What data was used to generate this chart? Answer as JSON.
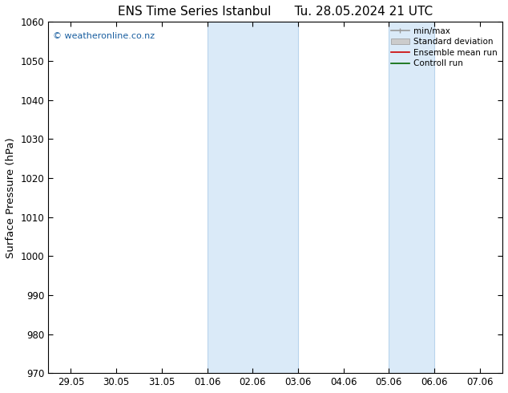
{
  "title": "ENS Time Series Istanbul      Tu. 28.05.2024 21 UTC",
  "ylabel": "Surface Pressure (hPa)",
  "ylim": [
    970,
    1060
  ],
  "yticks": [
    970,
    980,
    990,
    1000,
    1010,
    1020,
    1030,
    1040,
    1050,
    1060
  ],
  "xtick_labels": [
    "29.05",
    "30.05",
    "31.05",
    "01.06",
    "02.06",
    "03.06",
    "04.06",
    "05.06",
    "06.06",
    "07.06"
  ],
  "xtick_positions": [
    0,
    1,
    2,
    3,
    4,
    5,
    6,
    7,
    8,
    9
  ],
  "xlim": [
    -0.5,
    9.5
  ],
  "shade_bands": [
    {
      "xstart": 3,
      "xend": 5
    },
    {
      "xstart": 7,
      "xend": 8
    }
  ],
  "shade_color": "#daeaf8",
  "shade_edge_color": "#b8d4ec",
  "watermark_text": "© weatheronline.co.nz",
  "watermark_color": "#1a5fa0",
  "legend_items": [
    {
      "label": "min/max",
      "color": "#999999",
      "lw": 1.2
    },
    {
      "label": "Standard deviation",
      "color": "#cccccc",
      "lw": 5
    },
    {
      "label": "Ensemble mean run",
      "color": "#cc0000",
      "lw": 1.2
    },
    {
      "label": "Controll run",
      "color": "#006600",
      "lw": 1.2
    }
  ],
  "bg_color": "#ffffff",
  "tick_label_fontsize": 8.5,
  "axis_label_fontsize": 9.5,
  "title_fontsize": 11
}
